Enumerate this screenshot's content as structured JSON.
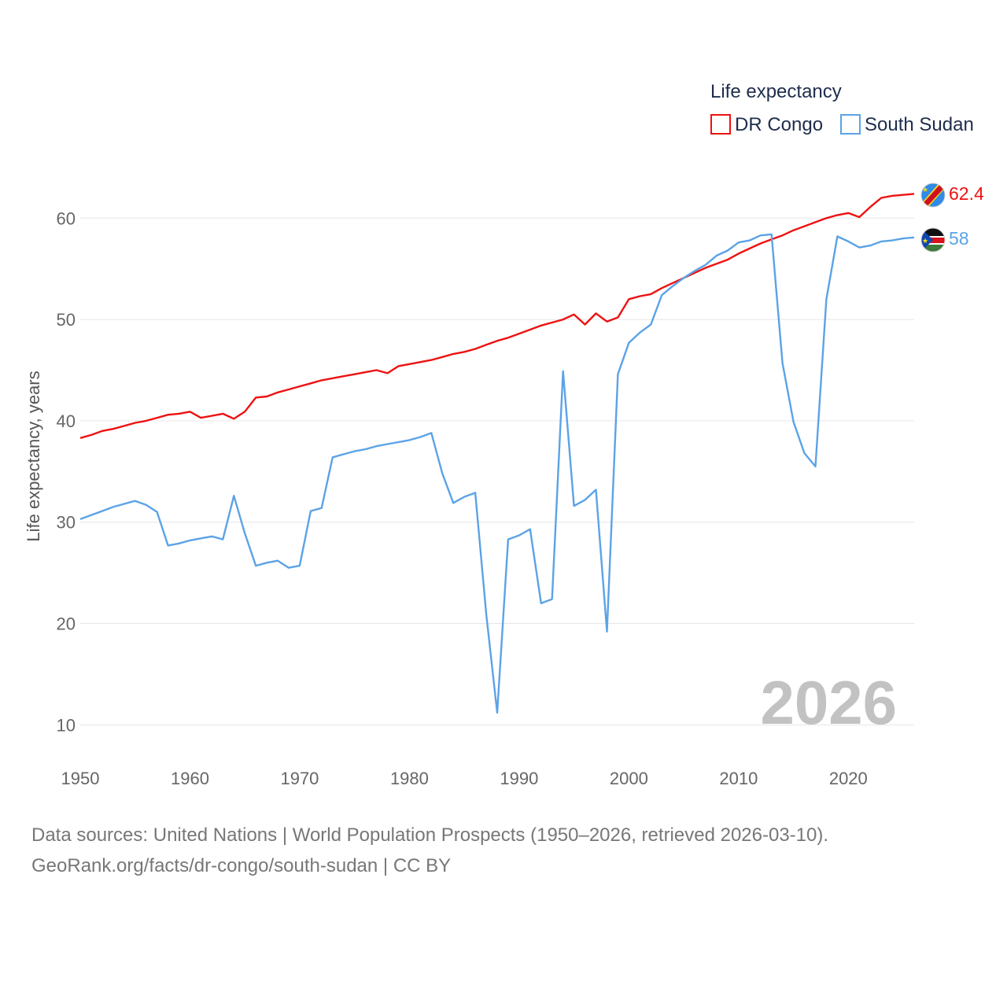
{
  "chart_data": {
    "type": "line",
    "ylabel": "Life expectancy, years",
    "xlim": [
      1950,
      2026
    ],
    "ylim": [
      7,
      66
    ],
    "x_ticks": [
      1950,
      1960,
      1970,
      1980,
      1990,
      2000,
      2010,
      2020
    ],
    "y_ticks": [
      10,
      20,
      30,
      40,
      50,
      60
    ],
    "legend": {
      "title": "Life expectancy",
      "position": "top-right"
    },
    "current_year": "2026",
    "x": [
      1950,
      1951,
      1952,
      1953,
      1954,
      1955,
      1956,
      1957,
      1958,
      1959,
      1960,
      1961,
      1962,
      1963,
      1964,
      1965,
      1966,
      1967,
      1968,
      1969,
      1970,
      1971,
      1972,
      1973,
      1974,
      1975,
      1976,
      1977,
      1978,
      1979,
      1980,
      1981,
      1982,
      1983,
      1984,
      1985,
      1986,
      1987,
      1988,
      1989,
      1990,
      1991,
      1992,
      1993,
      1994,
      1995,
      1996,
      1997,
      1998,
      1999,
      2000,
      2001,
      2002,
      2003,
      2004,
      2005,
      2006,
      2007,
      2008,
      2009,
      2010,
      2011,
      2012,
      2013,
      2014,
      2015,
      2016,
      2017,
      2018,
      2019,
      2020,
      2021,
      2022,
      2023,
      2024,
      2025,
      2026
    ],
    "series": [
      {
        "name": "DR Congo",
        "color": "#ee1111",
        "end_label": "62.4",
        "values": [
          38.3,
          38.6,
          39.0,
          39.2,
          39.5,
          39.8,
          40.0,
          40.3,
          40.6,
          40.7,
          40.9,
          40.3,
          40.5,
          40.7,
          40.2,
          40.9,
          42.3,
          42.4,
          42.8,
          43.1,
          43.4,
          43.7,
          44.0,
          44.2,
          44.4,
          44.6,
          44.8,
          45.0,
          44.7,
          45.4,
          45.6,
          45.8,
          46.0,
          46.3,
          46.6,
          46.8,
          47.1,
          47.5,
          47.9,
          48.2,
          48.6,
          49.0,
          49.4,
          49.7,
          50.0,
          50.5,
          49.5,
          50.6,
          49.8,
          50.2,
          52.0,
          52.3,
          52.5,
          53.1,
          53.6,
          54.1,
          54.6,
          55.1,
          55.5,
          55.9,
          56.5,
          57.0,
          57.5,
          57.9,
          58.3,
          58.8,
          59.2,
          59.6,
          60.0,
          60.3,
          60.5,
          60.1,
          61.1,
          62.0,
          62.2,
          62.3,
          62.4
        ]
      },
      {
        "name": "South Sudan",
        "color": "#5ba3e6",
        "end_label": "58",
        "values": [
          30.3,
          30.7,
          31.1,
          31.5,
          31.8,
          32.1,
          31.7,
          31.0,
          27.7,
          27.9,
          28.2,
          28.4,
          28.6,
          28.3,
          32.6,
          28.9,
          25.7,
          26.0,
          26.2,
          25.5,
          25.7,
          31.1,
          31.4,
          36.4,
          36.7,
          37.0,
          37.2,
          37.5,
          37.7,
          37.9,
          38.1,
          38.4,
          38.8,
          34.8,
          31.9,
          32.5,
          32.9,
          20.9,
          11.2,
          28.3,
          28.7,
          29.3,
          22.0,
          22.4,
          44.9,
          31.6,
          32.2,
          33.2,
          19.2,
          44.6,
          47.7,
          48.7,
          49.5,
          52.4,
          53.3,
          54.1,
          54.8,
          55.4,
          56.3,
          56.8,
          57.6,
          57.8,
          58.3,
          58.4,
          45.7,
          39.9,
          36.8,
          35.5,
          52.0,
          58.2,
          57.7,
          57.1,
          57.3,
          57.7,
          57.8,
          58.0,
          58.1
        ]
      }
    ]
  },
  "footer": {
    "line1": "Data sources: United Nations | World Population Prospects (1950–2026, retrieved 2026-03-10).",
    "line2": "GeoRank.org/facts/dr-congo/south-sudan | CC BY"
  },
  "flags": [
    {
      "series": "DR Congo",
      "icon": "dr-congo-flag-icon"
    },
    {
      "series": "South Sudan",
      "icon": "south-sudan-flag-icon"
    }
  ]
}
